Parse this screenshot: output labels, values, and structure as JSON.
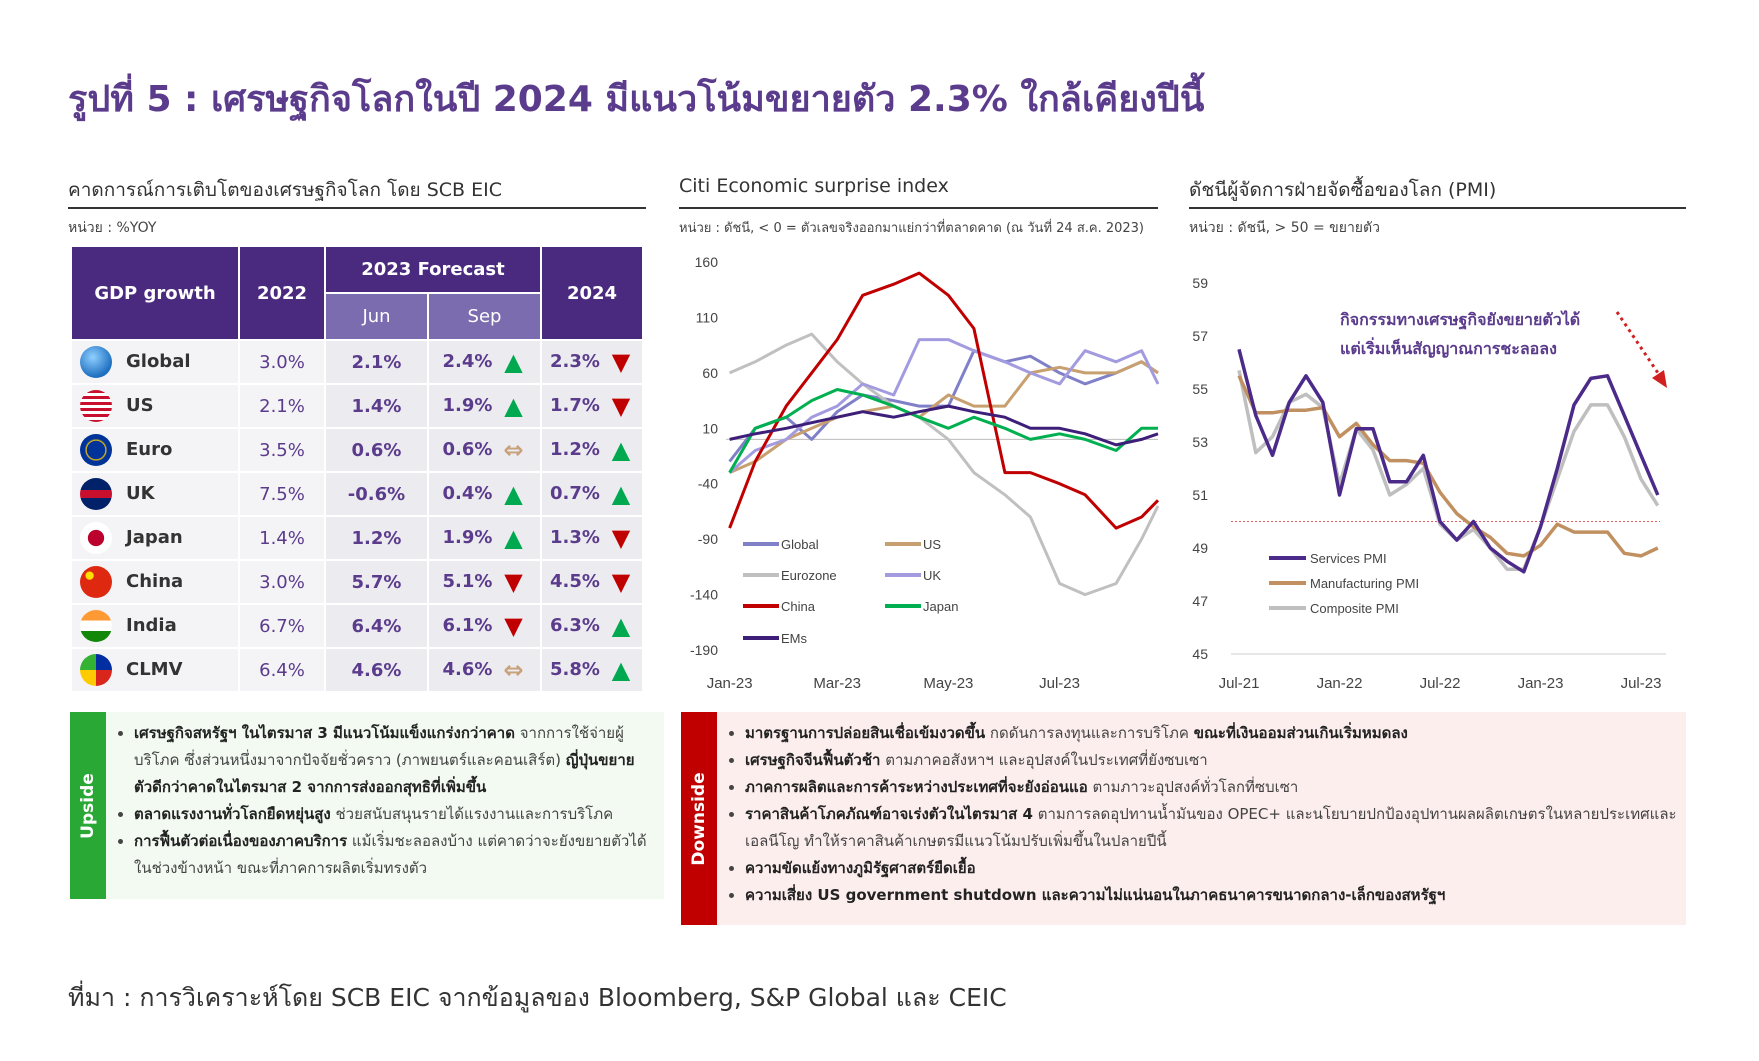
{
  "title": "รูปที่ 5 : เศรษฐกิจโลกในปี 2024 มีแนวโน้มขยายตัว 2.3% ใกล้เคียงปีนี้",
  "source": "ที่มา : การวิเคราะห์โดย SCB EIC จากข้อมูลของ Bloomberg, S&P Global และ CEIC",
  "colors": {
    "accent": "#5b3b8c",
    "header": "#4a2a7e",
    "subheader": "#7b6cb0",
    "up": "#00a94f",
    "down": "#c00000",
    "flat": "#c8a07a",
    "upside": "#2aa835",
    "downside": "#c00000"
  },
  "left_panel": {
    "title": "คาดการณ์การเติบโตของเศรษฐกิจโลก โดย SCB EIC",
    "unit": "หน่วย : %YOY",
    "headers": {
      "gdp": "GDP growth",
      "y2022": "2022",
      "forecast": "2023 Forecast",
      "jun": "Jun",
      "sep": "Sep",
      "y2024": "2024"
    },
    "rows": [
      {
        "name": "Global",
        "flag": "globe-icon",
        "v2022": "3.0%",
        "jun": "2.1%",
        "sep": "2.4%",
        "sep_trend": "up",
        "v2024": "2.3%",
        "trend_2024": "down"
      },
      {
        "name": "US",
        "flag": "us-flag-icon",
        "v2022": "2.1%",
        "jun": "1.4%",
        "sep": "1.9%",
        "sep_trend": "up",
        "v2024": "1.7%",
        "trend_2024": "down"
      },
      {
        "name": "Euro",
        "flag": "eu-flag-icon",
        "v2022": "3.5%",
        "jun": "0.6%",
        "sep": "0.6%",
        "sep_trend": "flat",
        "v2024": "1.2%",
        "trend_2024": "up"
      },
      {
        "name": "UK",
        "flag": "uk-flag-icon",
        "v2022": "7.5%",
        "jun": "-0.6%",
        "sep": "0.4%",
        "sep_trend": "up",
        "v2024": "0.7%",
        "trend_2024": "up"
      },
      {
        "name": "Japan",
        "flag": "japan-flag-icon",
        "v2022": "1.4%",
        "jun": "1.2%",
        "sep": "1.9%",
        "sep_trend": "up",
        "v2024": "1.3%",
        "trend_2024": "down"
      },
      {
        "name": "China",
        "flag": "china-flag-icon",
        "v2022": "3.0%",
        "jun": "5.7%",
        "sep": "5.1%",
        "sep_trend": "down",
        "v2024": "4.5%",
        "trend_2024": "down"
      },
      {
        "name": "India",
        "flag": "india-flag-icon",
        "v2022": "6.7%",
        "jun": "6.4%",
        "sep": "6.1%",
        "sep_trend": "down",
        "v2024": "6.3%",
        "trend_2024": "up"
      },
      {
        "name": "CLMV",
        "flag": "clmv-flag-icon",
        "v2022": "6.4%",
        "jun": "4.6%",
        "sep": "4.6%",
        "sep_trend": "flat",
        "v2024": "5.8%",
        "trend_2024": "up"
      }
    ]
  },
  "upside": {
    "label": "Upside",
    "bullets": [
      [
        {
          "b": true,
          "t": "เศรษฐกิจสหรัฐฯ ในไตรมาส 3 มีแนวโน้มแข็งแกร่งกว่าคาด"
        },
        {
          "b": false,
          "t": " จากการใช้จ่ายผู้บริโภค ซึ่งส่วนหนึ่งมาจากปัจจัยชั่วคราว (ภาพยนตร์และคอนเสิร์ต) "
        },
        {
          "b": true,
          "t": "ญี่ปุ่นขยายตัวดีกว่าคาดในไตรมาส 2 จากการส่งออกสุทธิที่เพิ่มขึ้น"
        }
      ],
      [
        {
          "b": true,
          "t": "ตลาดแรงงานทั่วโลกยืดหยุ่นสูง"
        },
        {
          "b": false,
          "t": " ช่วยสนับสนุนรายได้แรงงานและการบริโภค"
        }
      ],
      [
        {
          "b": true,
          "t": "การฟื้นตัวต่อเนื่องของภาคบริการ"
        },
        {
          "b": false,
          "t": " แม้เริ่มชะลอลงบ้าง แต่คาดว่าจะยังขยายตัวได้ในช่วงข้างหน้า ขณะที่ภาคการผลิตเริ่มทรงตัว"
        }
      ]
    ]
  },
  "downside": {
    "label": "Downside",
    "bullets": [
      [
        {
          "b": true,
          "t": "มาตรฐานการปล่อยสินเชื่อเข้มงวดขึ้น"
        },
        {
          "b": false,
          "t": " กดดันการลงทุนและการบริโภค "
        },
        {
          "b": true,
          "t": "ขณะที่เงินออมส่วนเกินเริ่มหมดลง"
        }
      ],
      [
        {
          "b": true,
          "t": "เศรษฐกิจจีนฟื้นตัวช้า"
        },
        {
          "b": false,
          "t": " ตามภาคอสังหาฯ และอุปสงค์ในประเทศที่ยังซบเซา"
        }
      ],
      [
        {
          "b": true,
          "t": "ภาคการผลิตและการค้าระหว่างประเทศที่จะยังอ่อนแอ"
        },
        {
          "b": false,
          "t": " ตามภาวะอุปสงค์ทั่วโลกที่ซบเซา"
        }
      ],
      [
        {
          "b": true,
          "t": "ราคาสินค้าโภคภัณฑ์อาจเร่งตัวในไตรมาส 4"
        },
        {
          "b": false,
          "t": " ตามการลดอุปทานน้ำมันของ OPEC+ และนโยบายปกป้องอุปทานผลผลิตเกษตรในหลายประเทศและเอลนีโญ ทำให้ราคาสินค้าเกษตรมีแนวโน้มปรับเพิ่มขึ้นในปลายปีนี้"
        }
      ],
      [
        {
          "b": true,
          "t": "ความขัดแย้งทางภูมิรัฐศาสตร์ยืดเยื้อ"
        }
      ],
      [
        {
          "b": true,
          "t": "ความเสี่ยง US government shutdown และความไม่แน่นอนในภาคธนาคารขนาดกลาง-เล็กของสหรัฐฯ"
        }
      ]
    ]
  },
  "chart_data": [
    {
      "type": "line",
      "title": "Citi Economic surprise index",
      "unit": "หน่วย : ดัชนี, < 0 = ตัวเลขจริงออกมาแย่กว่าที่ตลาดคาด (ณ วันที่ 24 ส.ค. 2023)",
      "x": [
        "2023-01-01",
        "2023-01-15",
        "2023-02-01",
        "2023-02-15",
        "2023-03-01",
        "2023-03-15",
        "2023-04-01",
        "2023-04-15",
        "2023-05-01",
        "2023-05-15",
        "2023-06-01",
        "2023-06-15",
        "2023-07-01",
        "2023-07-15",
        "2023-08-01",
        "2023-08-15",
        "2023-08-24"
      ],
      "xlim": [
        "2022-12-30",
        "2023-08-24"
      ],
      "xticks": [
        {
          "date": "2023-01-01",
          "label": "Jan-23"
        },
        {
          "date": "2023-03-01",
          "label": "Mar-23"
        },
        {
          "date": "2023-05-01",
          "label": "May-23"
        },
        {
          "date": "2023-07-01",
          "label": "Jul-23"
        }
      ],
      "ylim": [
        -190,
        160
      ],
      "yticks": [
        160,
        110,
        60,
        10,
        -40,
        -90,
        -140,
        -190
      ],
      "zero_line": true,
      "legend": "bottom-left",
      "series": [
        {
          "name": "Global",
          "color": "#8080c8",
          "values": [
            -20,
            10,
            20,
            0,
            25,
            40,
            35,
            30,
            30,
            80,
            70,
            75,
            60,
            50,
            60,
            70,
            60
          ]
        },
        {
          "name": "US",
          "color": "#c8a070",
          "values": [
            -30,
            -20,
            0,
            10,
            20,
            25,
            30,
            20,
            40,
            30,
            30,
            60,
            65,
            60,
            60,
            70,
            60
          ]
        },
        {
          "name": "Eurozone",
          "color": "#c0c0c0",
          "values": [
            60,
            70,
            85,
            95,
            70,
            50,
            30,
            20,
            0,
            -30,
            -50,
            -70,
            -130,
            -140,
            -130,
            -90,
            -60
          ]
        },
        {
          "name": "UK",
          "color": "#a39be0",
          "values": [
            -30,
            -10,
            0,
            20,
            30,
            50,
            40,
            90,
            90,
            80,
            70,
            60,
            50,
            80,
            70,
            80,
            50
          ]
        },
        {
          "name": "China",
          "color": "#c00000",
          "values": [
            -80,
            -20,
            30,
            60,
            90,
            130,
            140,
            150,
            130,
            100,
            -30,
            -30,
            -40,
            -50,
            -80,
            -70,
            -55
          ]
        },
        {
          "name": "Japan",
          "color": "#00b050",
          "values": [
            -30,
            10,
            20,
            35,
            45,
            40,
            30,
            20,
            10,
            20,
            10,
            0,
            5,
            0,
            -10,
            10,
            10
          ]
        },
        {
          "name": "EMs",
          "color": "#3d1f7a",
          "values": [
            0,
            5,
            10,
            15,
            20,
            25,
            20,
            25,
            30,
            25,
            20,
            10,
            10,
            5,
            -5,
            0,
            5
          ]
        }
      ]
    },
    {
      "type": "line",
      "title": "ดัชนีผู้จัดการฝ่ายจัดซื้อของโลก (PMI)",
      "unit": "หน่วย : ดัชนี, > 50 = ขยายตัว",
      "x_start": "2021-07",
      "xticks": [
        {
          "index": 0,
          "label": "Jul-21"
        },
        {
          "index": 6,
          "label": "Jan-22"
        },
        {
          "index": 12,
          "label": "Jul-22"
        },
        {
          "index": 18,
          "label": "Jan-23"
        },
        {
          "index": 24,
          "label": "Jul-23"
        }
      ],
      "ylim": [
        45,
        59
      ],
      "yticks": [
        59,
        57,
        55,
        53,
        51,
        49,
        47,
        45
      ],
      "reference_line": 50,
      "annotation": [
        "กิจกรรมทางเศรษฐกิจยังขยายตัวได้",
        "แต่เริ่มเห็นสัญญาณการชะลอลง"
      ],
      "legend": "bottom-left",
      "series": [
        {
          "name": "Services PMI",
          "color": "#4b2a8a",
          "values": [
            56.5,
            54.0,
            52.5,
            54.5,
            55.5,
            54.5,
            51.0,
            53.5,
            53.5,
            51.5,
            51.5,
            52.5,
            50.0,
            49.3,
            50.0,
            49.0,
            48.5,
            48.1,
            49.8,
            52.0,
            54.4,
            55.4,
            55.5,
            54.0,
            52.5,
            51.0
          ]
        },
        {
          "name": "Manufacturing PMI",
          "color": "#c09060",
          "values": [
            55.5,
            54.1,
            54.1,
            54.2,
            54.2,
            54.3,
            53.2,
            53.7,
            52.9,
            52.3,
            52.3,
            52.2,
            51.1,
            50.3,
            49.8,
            49.4,
            48.8,
            48.7,
            49.1,
            49.9,
            49.6,
            49.6,
            49.6,
            48.8,
            48.7,
            49.0
          ]
        },
        {
          "name": "Composite PMI",
          "color": "#bfbfbf",
          "values": [
            55.7,
            52.6,
            53.2,
            54.5,
            54.8,
            54.3,
            51.4,
            53.5,
            52.7,
            51.0,
            51.4,
            52.0,
            49.9,
            49.3,
            49.7,
            49.0,
            48.2,
            48.2,
            49.8,
            51.6,
            53.4,
            54.4,
            54.4,
            53.2,
            51.6,
            50.6
          ]
        }
      ]
    }
  ]
}
